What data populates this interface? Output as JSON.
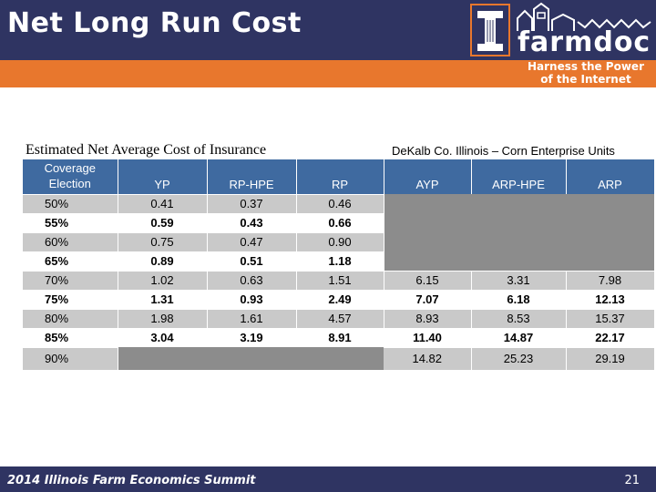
{
  "header": {
    "title": "Net Long Run Cost",
    "logo_word": "farmdoc",
    "logo_tagline_1": "Harness the Power",
    "logo_tagline_2": "of the Internet"
  },
  "table": {
    "title": "Estimated Net Average Cost of Insurance",
    "subtitle": "DeKalb Co. Illinois  –  Corn Enterprise Units",
    "header_col0_line1": "Coverage",
    "header_col0_line2": "Election",
    "columns": [
      "YP",
      "RP-HPE",
      "RP",
      "AYP",
      "ARP-HPE",
      "ARP"
    ],
    "rows": [
      {
        "coverage": "50%",
        "values": [
          "0.41",
          "0.37",
          "0.46",
          "",
          "",
          ""
        ]
      },
      {
        "coverage": "55%",
        "values": [
          "0.59",
          "0.43",
          "0.66",
          "",
          "",
          ""
        ]
      },
      {
        "coverage": "60%",
        "values": [
          "0.75",
          "0.47",
          "0.90",
          "",
          "",
          ""
        ]
      },
      {
        "coverage": "65%",
        "values": [
          "0.89",
          "0.51",
          "1.18",
          "",
          "",
          ""
        ]
      },
      {
        "coverage": "70%",
        "values": [
          "1.02",
          "0.63",
          "1.51",
          "6.15",
          "3.31",
          "7.98"
        ]
      },
      {
        "coverage": "75%",
        "values": [
          "1.31",
          "0.93",
          "2.49",
          "7.07",
          "6.18",
          "12.13"
        ]
      },
      {
        "coverage": "80%",
        "values": [
          "1.98",
          "1.61",
          "4.57",
          "8.93",
          "8.53",
          "15.37"
        ]
      },
      {
        "coverage": "85%",
        "values": [
          "3.04",
          "3.19",
          "8.91",
          "11.40",
          "14.87",
          "22.17"
        ]
      },
      {
        "coverage": "90%",
        "values": [
          "",
          "",
          "",
          "14.82",
          "25.23",
          "29.19"
        ]
      }
    ]
  },
  "footer": {
    "event": "2014 Illinois Farm Economics Summit",
    "page_number": "21"
  },
  "colors": {
    "navy": "#2f3462",
    "orange": "#e8772d",
    "table_header": "#3f6aa0",
    "row_shade": "#c9c9c9",
    "blank_cell": "#8c8c8c"
  }
}
